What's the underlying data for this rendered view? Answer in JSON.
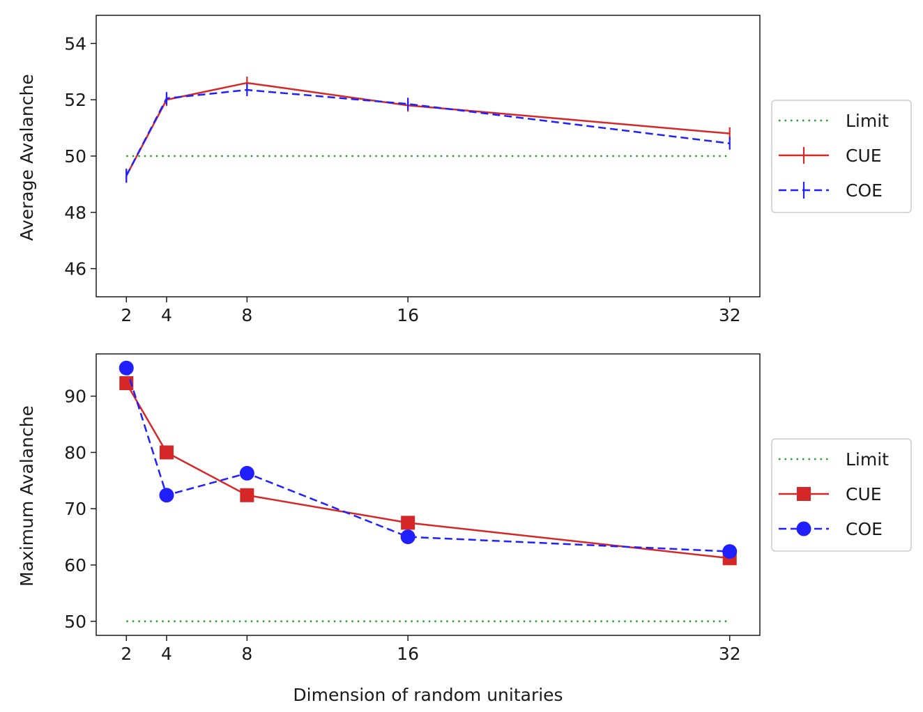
{
  "chart_data": [
    {
      "type": "line",
      "title": "",
      "xlabel": "",
      "ylabel": "Average Avalanche",
      "x": [
        2,
        4,
        8,
        16,
        32
      ],
      "xticks": [
        "2",
        "4",
        "8",
        "16",
        "32"
      ],
      "xlim": [
        0.5,
        33.5
      ],
      "yticks": [
        "46",
        "48",
        "50",
        "52",
        "54"
      ],
      "ylim": [
        45,
        55
      ],
      "legend": [
        "Limit",
        "CUE",
        "COE"
      ],
      "legend_position": "outside-right",
      "series": [
        {
          "name": "Limit",
          "values": [
            50,
            50,
            50,
            50,
            50
          ],
          "color": "#2ca02c",
          "style": "dotted",
          "marker": "none"
        },
        {
          "name": "CUE",
          "values": [
            49.3,
            52.0,
            52.6,
            51.8,
            50.8
          ],
          "error": [
            0.15,
            0.15,
            0.2,
            0.15,
            0.2
          ],
          "color": "#d62728",
          "style": "solid",
          "marker": "errorbar"
        },
        {
          "name": "COE",
          "values": [
            49.3,
            52.05,
            52.35,
            51.85,
            50.45
          ],
          "error": [
            0.25,
            0.2,
            0.15,
            0.15,
            0.15
          ],
          "color": "#1f1fff",
          "style": "dashed",
          "marker": "errorbar"
        }
      ]
    },
    {
      "type": "line",
      "title": "",
      "xlabel": "Dimension of random unitaries",
      "ylabel": "Maximum Avalanche",
      "x": [
        2,
        4,
        8,
        16,
        32
      ],
      "xticks": [
        "2",
        "4",
        "8",
        "16",
        "32"
      ],
      "xlim": [
        0.5,
        33.5
      ],
      "yticks": [
        "50",
        "60",
        "70",
        "80",
        "90"
      ],
      "ylim": [
        47.5,
        97.5
      ],
      "legend": [
        "Limit",
        "CUE",
        "COE"
      ],
      "legend_position": "outside-right",
      "series": [
        {
          "name": "Limit",
          "values": [
            50,
            50,
            50,
            50,
            50
          ],
          "color": "#2ca02c",
          "style": "dotted",
          "marker": "none"
        },
        {
          "name": "CUE",
          "values": [
            92.3,
            80.0,
            72.4,
            67.5,
            61.2
          ],
          "color": "#d62728",
          "style": "solid",
          "marker": "square"
        },
        {
          "name": "COE",
          "values": [
            95.0,
            72.4,
            76.3,
            65.0,
            62.4
          ],
          "color": "#1f1fff",
          "style": "dashed",
          "marker": "circle"
        }
      ]
    }
  ]
}
